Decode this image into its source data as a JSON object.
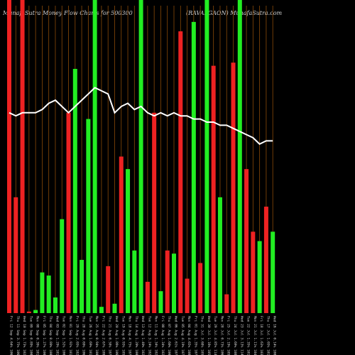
{
  "header": {
    "left_title": "MunafaSutra  Money Flow  Charts for 500300",
    "right_title": "(RAVALGAON) MunafaSutra.com"
  },
  "colors": {
    "background": "#000000",
    "up": "#22ee22",
    "down": "#ee2222",
    "grid": "#8a4a08",
    "line": "#ffffff"
  },
  "chart_data": {
    "type": "bar",
    "title": "MunafaSutra  Money Flow  Charts for 500300",
    "ylim": [
      0,
      100
    ],
    "x": [
      "Fri 12 Sep 4.64% 1065.00",
      "Thu 11 Sep 3.75% 1061.25",
      "Wed 10 Sep 1.73% 1024.55",
      "Tue 09 Sep 0.89% 1003.15",
      "Mon 08 Sep 0.39% 1012.25",
      "Fri 05 Sep 1.27% 1007.35",
      "Thu 04 Sep 0.80% 1003.20",
      "Wed 03 Sep 1.29% 1010.00",
      "Tue 02 Sep 1.52% 1001.85",
      "Mon 01 Sep 1.92% 1015.00",
      "Fri 29 Aug 2.03% 1025.95",
      "Thu 28 Aug 0.69% 1065.00",
      "Tue 26 Aug 1.69% 1015.20",
      "Mon 25 Aug 0.94% 1008.15",
      "Fri 22 Aug 2.67% 1098.00",
      "Thu 21 Aug 0.58% 1074.00",
      "Wed 20 Aug 1.86% 1060.00",
      "Tue 19 Aug 0.93% 1052.05",
      "Mon 18 Aug 4.75% 1078.40",
      "Thu 14 Aug 1.20% 1006.50",
      "Wed 13 Aug 1.40% 1023.35",
      "Tue 12 Aug 3.24% 1029.45",
      "Mon 11 Aug 1.34% 1029.00",
      "Fri 08 Aug 1.34% 1020.70",
      "Thu 07 Aug 1.60% 1000.00",
      "Wed 06 Aug 2.61% 1073.10",
      "Tue 05 Aug 4.19% 1075.00",
      "Mon 04 Aug 4.65% 1083.25",
      "Fri 01 Aug 1.35% 1071.50",
      "Thu 31 Jul 3.68% 1052.70",
      "Wed 30 Jul 1.16% 1056.30",
      "Tue 29 Jul 4.85% 1145.70",
      "Mon 28 Jul 0.73% 1065.00",
      "Fri 25 Jul 2.19% 1051.30",
      "Thu 24 Jul 1.69% 1089.20",
      "Wed 23 Jul 3.13% 1149.20",
      "Tue 22 Jul 1.35% 1016.90",
      "Mon 21 Jul 1.11% 1041.85",
      "Fri 18 Jul 1.63% 1035.35",
      "Thu 17 Jul 1.03% 1014.55",
      "Wed 16 Jul 0.14% 1005.00"
    ],
    "directions": [
      "down",
      "down",
      "down",
      "down",
      "up",
      "up",
      "up",
      "up",
      "up",
      "down",
      "up",
      "up",
      "up",
      "up",
      "up",
      "down",
      "up",
      "down",
      "up",
      "up",
      "up",
      "down",
      "down",
      "up",
      "down",
      "up",
      "down",
      "down",
      "up",
      "down",
      "up",
      "down",
      "up",
      "down",
      "down",
      "up",
      "down",
      "down",
      "up",
      "down",
      "up"
    ],
    "values": [
      100,
      37,
      100,
      0.5,
      1,
      13,
      12,
      5,
      30,
      64,
      78,
      17,
      62,
      100,
      2,
      15,
      3,
      50,
      46,
      20,
      100,
      10,
      64,
      7,
      20,
      19,
      90,
      11,
      93,
      16,
      100,
      79,
      37,
      6,
      80,
      100,
      46,
      26,
      23,
      34,
      26
    ],
    "line": [
      64,
      63,
      64,
      64,
      64,
      65,
      67,
      68,
      66,
      64,
      66,
      68,
      70,
      72,
      71,
      70,
      64,
      66,
      67,
      65,
      66,
      64,
      63,
      64,
      63,
      64,
      63,
      63,
      62,
      62,
      61,
      61,
      60,
      60,
      59,
      58,
      57,
      56,
      54,
      55,
      55
    ]
  }
}
